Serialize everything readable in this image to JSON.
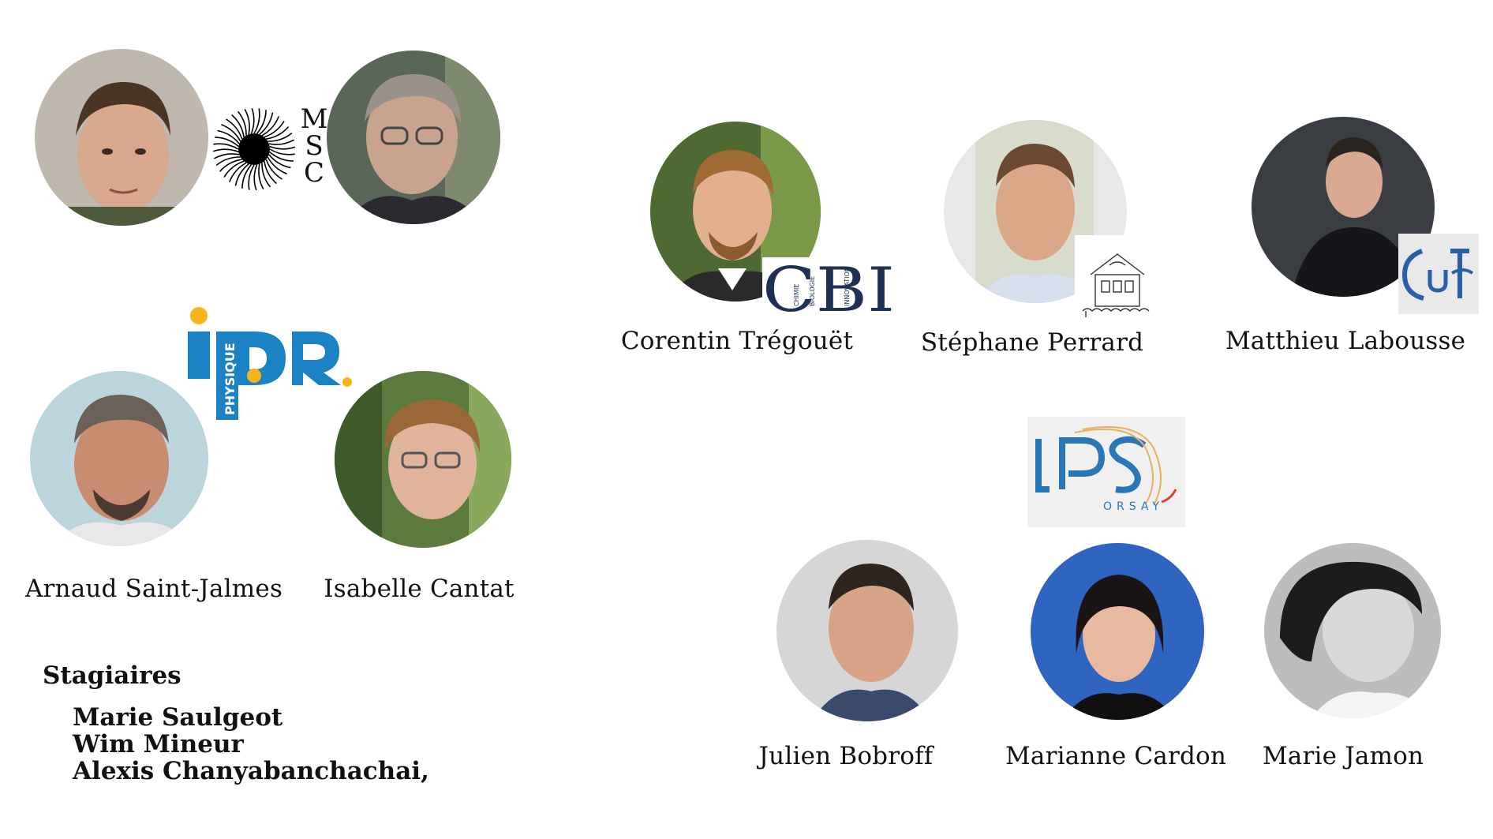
{
  "people": {
    "p1": {
      "name": ""
    },
    "p2": {
      "name": ""
    },
    "arnaud": {
      "name": "Arnaud Saint-Jalmes"
    },
    "isabelle": {
      "name": "Isabelle Cantat"
    },
    "corentin": {
      "name": "Corentin Trégouët"
    },
    "stephane": {
      "name": "Stéphane Perrard"
    },
    "matthieu": {
      "name": "Matthieu Labousse"
    },
    "julien": {
      "name": "Julien Bobroff"
    },
    "marianne": {
      "name": "Marianne Cardon"
    },
    "marie": {
      "name": "Marie Jamon"
    }
  },
  "logos": {
    "msc": {
      "letters": [
        "M",
        "S",
        "C"
      ]
    },
    "ipr": {
      "text": "iPR.",
      "sub": "PHYSIQUE"
    },
    "cbi": {
      "text": "CBI",
      "sub1": "CHIMIE",
      "sub2": "BIOLOGIE",
      "sub3": "INNOVATION"
    },
    "gulliver": {
      "text": "GuLr"
    },
    "lps": {
      "text": "LPS",
      "sub": "ORSAY"
    }
  },
  "stagiaires": {
    "title": "Stagiaires",
    "items": [
      "Marie Saulgeot",
      "Wim Mineur",
      "Alexis Chanyabanchachai,"
    ]
  },
  "colors": {
    "ipr_blue": "#1b82c4",
    "ipr_yellow": "#f4b41a",
    "cbi_navy": "#1f2f55",
    "lps_blue": "#2a77b8"
  }
}
